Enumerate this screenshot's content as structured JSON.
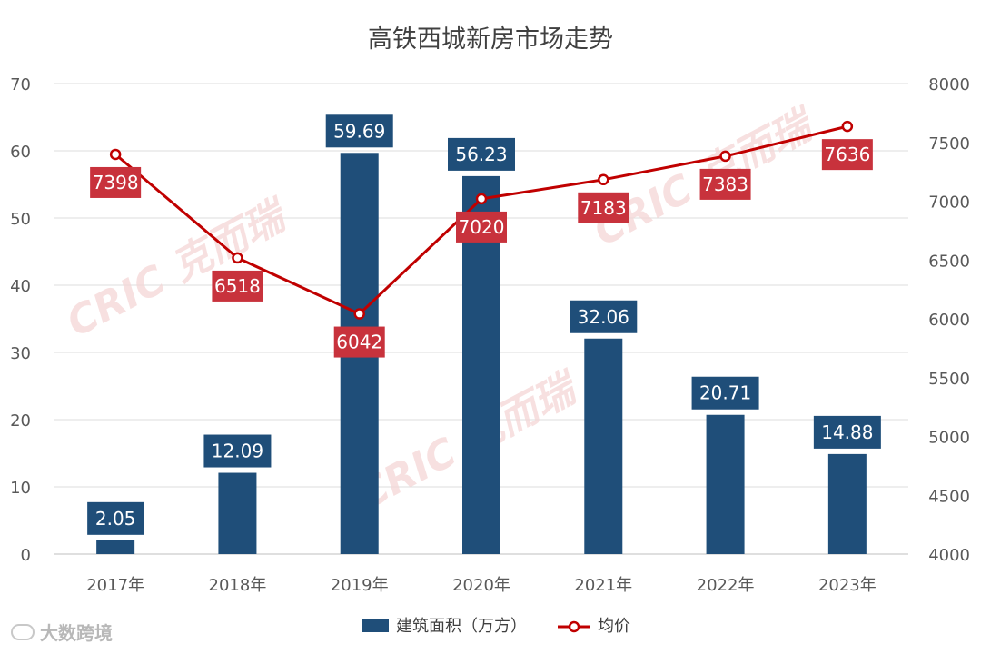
{
  "chart_data": {
    "type": "bar+line",
    "title": "高铁西城新房市场走势",
    "categories": [
      "2017年",
      "2018年",
      "2019年",
      "2020年",
      "2021年",
      "2022年",
      "2023年"
    ],
    "series": [
      {
        "name": "建筑面积（万方）",
        "type": "bar",
        "axis": "left",
        "color": "#1f4e79",
        "values": [
          2.05,
          12.09,
          59.69,
          56.23,
          32.06,
          20.71,
          14.88
        ],
        "labels": [
          "2.05",
          "12.09",
          "59.69",
          "56.23",
          "32.06",
          "20.71",
          "14.88"
        ]
      },
      {
        "name": "均价",
        "type": "line",
        "axis": "right",
        "color": "#c00000",
        "values": [
          7398,
          6518,
          6042,
          7020,
          7183,
          7383,
          7636
        ],
        "labels": [
          "7398",
          "6518",
          "6042",
          "7020",
          "7183",
          "7383",
          "7636"
        ]
      }
    ],
    "y_left": {
      "min": 0,
      "max": 70,
      "ticks": [
        "0",
        "10",
        "20",
        "30",
        "40",
        "50",
        "60",
        "70"
      ]
    },
    "y_right": {
      "min": 4000,
      "max": 8000,
      "ticks": [
        "4000",
        "4500",
        "5000",
        "5500",
        "6000",
        "6500",
        "7000",
        "7500",
        "8000"
      ]
    },
    "grid": true,
    "legend_position": "bottom",
    "watermark": "CRIC 克而瑞"
  },
  "footer": {
    "watermark_text": "大数跨境"
  }
}
